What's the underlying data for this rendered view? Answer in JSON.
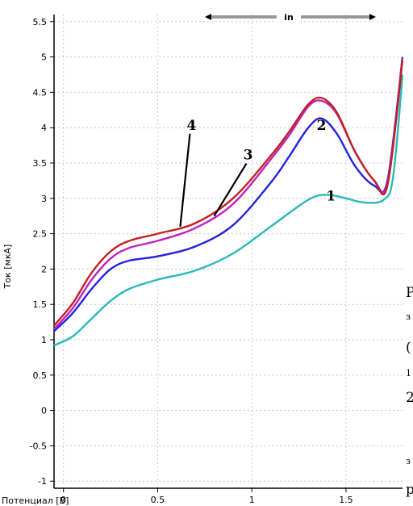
{
  "chart_data": {
    "type": "line",
    "title": "",
    "xlabel": "Потенциал [В]",
    "ylabel": "Ток [мкА]",
    "xlim": [
      -0.05,
      1.8
    ],
    "ylim": [
      -1.1,
      5.6
    ],
    "x_ticks": [
      "0",
      "0.5",
      "1",
      "1.5"
    ],
    "y_ticks": [
      "-1",
      "-0.5",
      "0",
      "0.5",
      "1",
      "1.5",
      "2",
      "2.5",
      "3",
      "3.5",
      "4",
      "4.5",
      "5",
      "5.5"
    ],
    "grid": true,
    "top_indicator_label": "in",
    "colors": {
      "series1": "#2ab8b8",
      "series2": "#2222e0",
      "series3": "#c020c0",
      "series4": "#c02020"
    },
    "series": [
      {
        "name": "1",
        "x": [
          -0.05,
          0.05,
          0.15,
          0.25,
          0.35,
          0.5,
          0.7,
          0.9,
          1.1,
          1.3,
          1.4,
          1.5,
          1.6,
          1.7,
          1.75,
          1.8
        ],
        "y": [
          0.92,
          1.05,
          1.3,
          1.55,
          1.72,
          1.85,
          1.98,
          2.22,
          2.6,
          2.98,
          3.05,
          3.0,
          2.94,
          2.98,
          3.3,
          4.75
        ]
      },
      {
        "name": "2",
        "x": [
          -0.05,
          0.05,
          0.15,
          0.25,
          0.35,
          0.5,
          0.7,
          0.9,
          1.1,
          1.2,
          1.3,
          1.37,
          1.45,
          1.55,
          1.65,
          1.72,
          1.8
        ],
        "y": [
          1.12,
          1.38,
          1.72,
          2.0,
          2.12,
          2.18,
          2.32,
          2.62,
          3.22,
          3.6,
          4.0,
          4.13,
          3.92,
          3.45,
          3.18,
          3.25,
          5.0
        ]
      },
      {
        "name": "3",
        "x": [
          -0.05,
          0.05,
          0.15,
          0.25,
          0.35,
          0.5,
          0.7,
          0.9,
          1.1,
          1.2,
          1.3,
          1.37,
          1.45,
          1.55,
          1.65,
          1.72,
          1.8
        ],
        "y": [
          1.15,
          1.45,
          1.85,
          2.15,
          2.3,
          2.4,
          2.58,
          2.92,
          3.55,
          3.9,
          4.3,
          4.38,
          4.2,
          3.65,
          3.25,
          3.22,
          4.98
        ]
      },
      {
        "name": "4",
        "x": [
          -0.05,
          0.05,
          0.15,
          0.25,
          0.35,
          0.5,
          0.7,
          0.9,
          1.1,
          1.2,
          1.3,
          1.37,
          1.45,
          1.55,
          1.65,
          1.72,
          1.8
        ],
        "y": [
          1.2,
          1.52,
          1.95,
          2.25,
          2.4,
          2.5,
          2.65,
          3.0,
          3.6,
          3.95,
          4.33,
          4.42,
          4.22,
          3.65,
          3.25,
          3.18,
          4.95
        ]
      }
    ],
    "annotations": [
      {
        "text": "4",
        "x": 0.68,
        "y": 3.97,
        "pointer_to": [
          0.62,
          2.6
        ]
      },
      {
        "text": "3",
        "x": 0.98,
        "y": 3.55,
        "pointer_to": [
          0.8,
          2.75
        ]
      },
      {
        "text": "2",
        "x": 1.37,
        "y": 3.97
      },
      {
        "text": "1",
        "x": 1.42,
        "y": 2.97
      }
    ]
  },
  "cut_off_text": [
    "Р",
    "з",
    "(",
    "1",
    "2",
    "з",
    "р"
  ]
}
